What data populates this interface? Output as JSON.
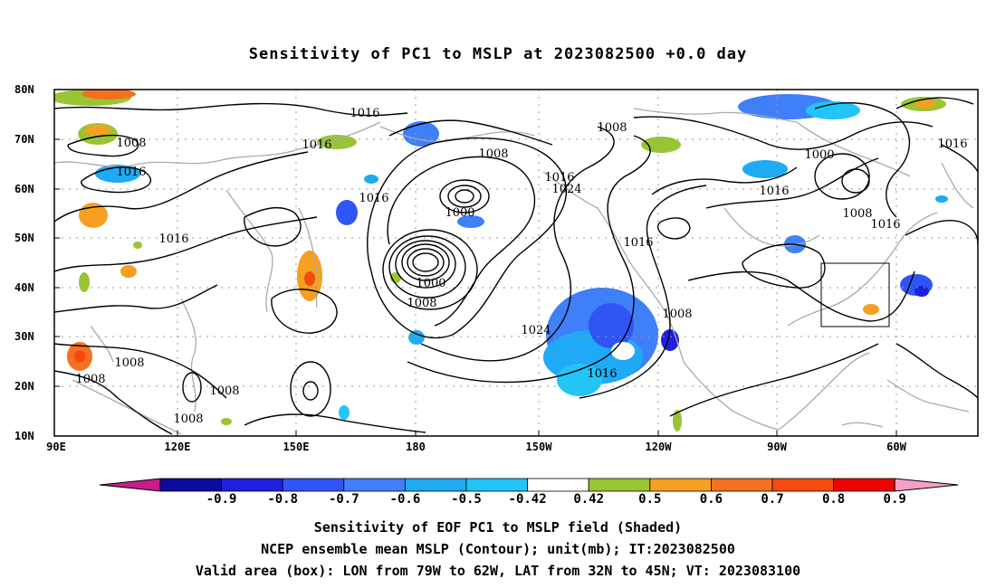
{
  "title": "Sensitivity of PC1 to MSLP at 2023082500 +0.0 day",
  "map": {
    "lat_labels": [
      "80N",
      "70N",
      "60N",
      "50N",
      "40N",
      "30N",
      "20N",
      "10N"
    ],
    "lon_labels": [
      "90E",
      "120E",
      "150E",
      "180",
      "150W",
      "120W",
      "90W",
      "60W"
    ],
    "contour_labels": [
      {
        "text": "1016"
      },
      {
        "text": "1008"
      },
      {
        "text": "1008"
      },
      {
        "text": "1016"
      },
      {
        "text": "1016"
      },
      {
        "text": "1008"
      },
      {
        "text": "1016"
      },
      {
        "text": "1000"
      },
      {
        "text": "1016"
      },
      {
        "text": "1000"
      },
      {
        "text": "1024"
      },
      {
        "text": "1016"
      },
      {
        "text": "1016"
      },
      {
        "text": "1016"
      },
      {
        "text": "1008"
      },
      {
        "text": "1016"
      },
      {
        "text": "1000"
      },
      {
        "text": "1008"
      },
      {
        "text": "1024"
      },
      {
        "text": "1008"
      },
      {
        "text": "1016"
      },
      {
        "text": "1008"
      },
      {
        "text": "1008"
      },
      {
        "text": "1008"
      },
      {
        "text": "1008"
      }
    ],
    "valid_box": {
      "lon_from": "79W",
      "lon_to": "62W",
      "lat_from": "32N",
      "lat_to": "45N"
    }
  },
  "colorbar": {
    "labels": [
      "-0.9",
      "-0.8",
      "-0.7",
      "-0.6",
      "-0.5",
      "-0.42",
      "0.42",
      "0.5",
      "0.6",
      "0.7",
      "0.8",
      "0.9"
    ],
    "colors": [
      "#0b0ba0",
      "#1f1fe0",
      "#2f55f5",
      "#3f7ff8",
      "#1eaaf5",
      "#22c5f8",
      "#ffffff",
      "#99c535",
      "#f5a020",
      "#f57020",
      "#f54a10",
      "#f00000"
    ],
    "left_arrow_color": "#c81c8c",
    "right_arrow_color": "#f5a0c8"
  },
  "captions": [
    "Sensitivity of EOF PC1 to MSLP field (Shaded)",
    "NCEP ensemble mean MSLP (Contour); unit(mb); IT:2023082500",
    "Valid area (box): LON from 79W to 62W, LAT from 32N to 45N; VT: 2023083100"
  ]
}
